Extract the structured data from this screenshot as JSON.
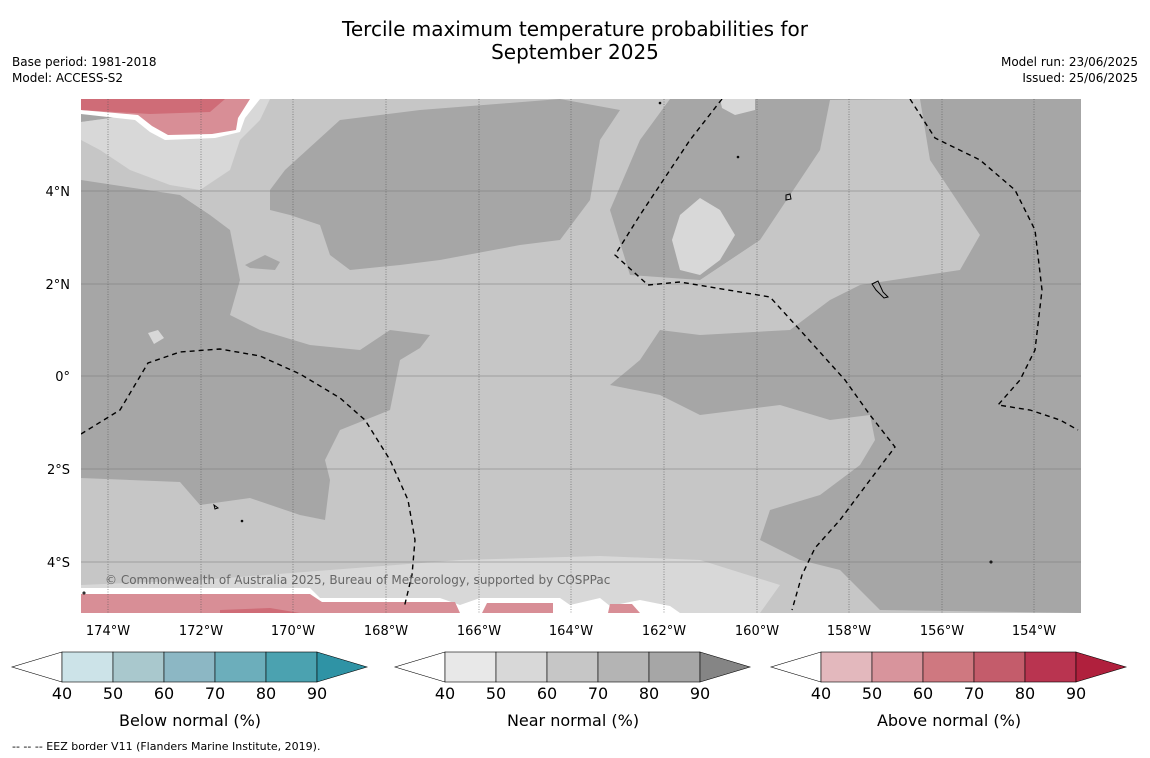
{
  "title_line1": "Tercile maximum temperature probabilities for",
  "title_line2": "September 2025",
  "base_period": "Base period: 1981-2018",
  "model": "Model: ACCESS-S2",
  "model_run": "Model run: 23/06/2025",
  "issued": "Issued: 25/06/2025",
  "copyright": "© Commonwealth of Australia 2025, Bureau of Meteorology, supported by COSPPac",
  "footer": "--  --  -- EEZ border V11 (Flanders Marine Institute, 2019).",
  "lat_labels": [
    "4°N",
    "2°N",
    "0°",
    "2°S",
    "4°S"
  ],
  "lon_labels": [
    "174°W",
    "172°W",
    "170°W",
    "168°W",
    "166°W",
    "164°W",
    "162°W",
    "160°W",
    "158°W",
    "156°W",
    "154°W"
  ],
  "colors": {
    "near_40_50": "#d8d8d8",
    "near_50_60": "#c6c6c6",
    "near_60_70": "#b4b4b4",
    "near_70_80": "#a6a6a6",
    "above_40_50": "#d88e96",
    "above_50_60": "#cf6c77",
    "below_cb": [
      "#cce3e8",
      "#a9c8cd",
      "#8cb7c4",
      "#6caebb",
      "#4ba2b0",
      "#2f93a5"
    ],
    "near_cb": [
      "#e8e8e8",
      "#d8d8d8",
      "#c6c6c6",
      "#b4b4b4",
      "#a6a6a6",
      "#858585"
    ],
    "above_cb": [
      "#e3b8bd",
      "#d8949c",
      "#cf7880",
      "#c45c6b",
      "#b93450",
      "#b0203d"
    ]
  },
  "colorbars": [
    {
      "label": "Below normal (%)",
      "ticks": [
        "40",
        "50",
        "60",
        "70",
        "80",
        "90"
      ]
    },
    {
      "label": "Near normal (%)",
      "ticks": [
        "40",
        "50",
        "60",
        "70",
        "80",
        "90"
      ]
    },
    {
      "label": "Above normal (%)",
      "ticks": [
        "40",
        "50",
        "60",
        "70",
        "80",
        "90"
      ]
    }
  ]
}
